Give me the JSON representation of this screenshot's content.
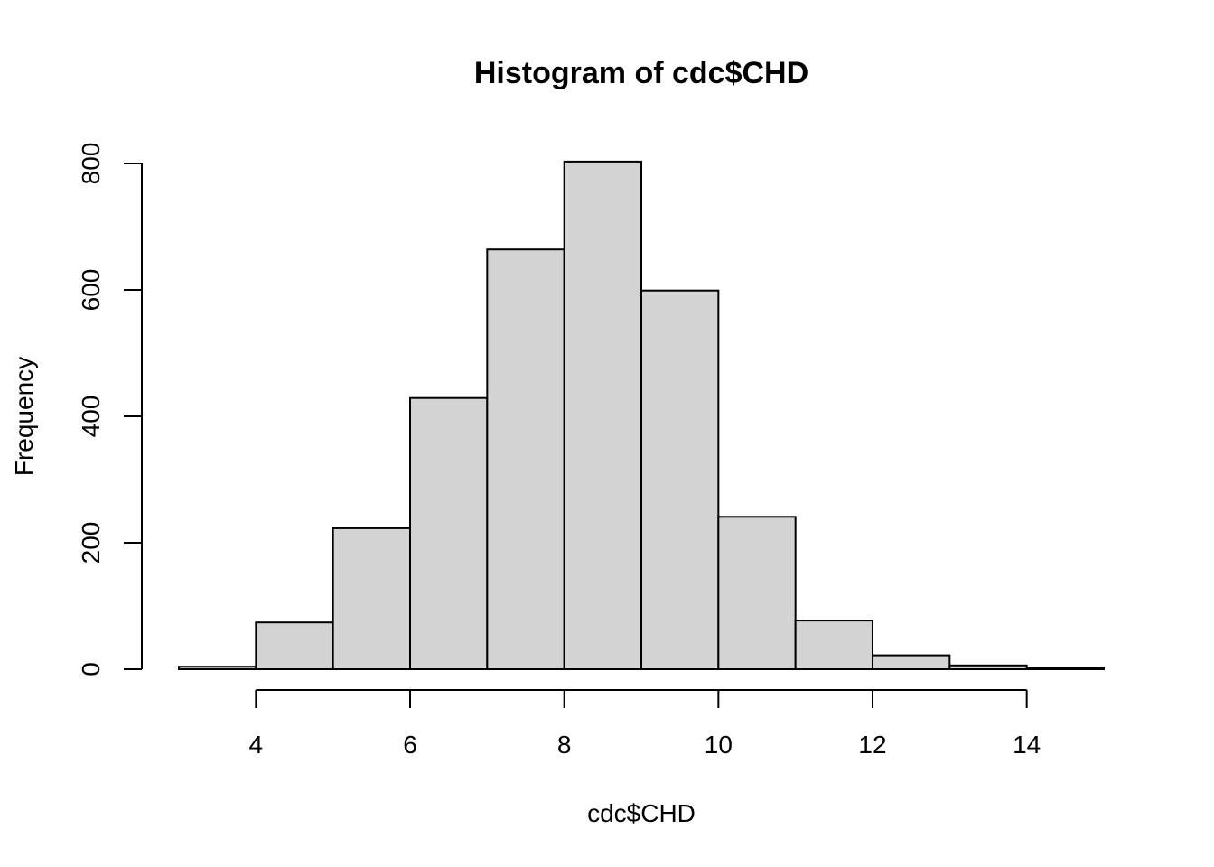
{
  "chart_data": {
    "type": "bar",
    "title": "Histogram of cdc$CHD",
    "xlabel": "cdc$CHD",
    "ylabel": "Frequency",
    "bin_edges": [
      3,
      4,
      5,
      6,
      7,
      8,
      9,
      10,
      11,
      12,
      13,
      14,
      15
    ],
    "values": [
      4,
      74,
      223,
      429,
      664,
      803,
      599,
      241,
      77,
      22,
      6,
      2
    ],
    "x_ticks": [
      4,
      6,
      8,
      10,
      12,
      14
    ],
    "y_ticks": [
      0,
      200,
      400,
      600,
      800
    ],
    "xlim": [
      3,
      15
    ],
    "ylim": [
      0,
      800
    ],
    "bar_color": "#d3d3d3",
    "grid": false
  }
}
